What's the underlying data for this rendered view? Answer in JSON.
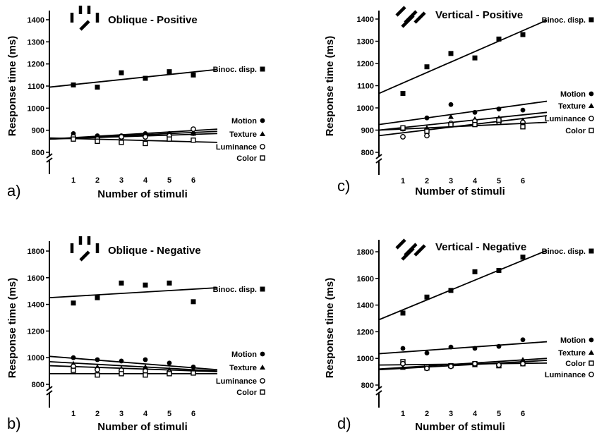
{
  "chart_data": [
    {
      "type": "scatter",
      "panel": "a)",
      "title": "Oblique - Positive",
      "xlabel": "Number of stimuli",
      "ylabel": "Response time (ms)",
      "x": [
        1,
        2,
        3,
        4,
        5,
        6
      ],
      "xticks": [
        "1",
        "2",
        "3",
        "4",
        "5",
        "6"
      ],
      "yticks": [
        "800",
        "900",
        "1000",
        "1100",
        "1200",
        "1300",
        "1400"
      ],
      "ylim": [
        800,
        1400
      ],
      "series": [
        {
          "name": "Binoc. disp.",
          "marker": "filled-square",
          "values": [
            1105,
            1095,
            1160,
            1135,
            1165,
            1150
          ],
          "fit": [
            1095,
            1175
          ]
        },
        {
          "name": "Motion",
          "marker": "filled-circle",
          "values": [
            885,
            875,
            875,
            885,
            885,
            885
          ],
          "fit": [
            860,
            905
          ]
        },
        {
          "name": "Texture",
          "marker": "filled-triangle",
          "values": [
            875,
            865,
            870,
            880,
            880,
            885
          ],
          "fit": [
            860,
            895
          ]
        },
        {
          "name": "Luminance",
          "marker": "open-circle",
          "values": [
            870,
            860,
            870,
            870,
            875,
            905
          ],
          "fit": [
            860,
            885
          ]
        },
        {
          "name": "Color",
          "marker": "open-square",
          "values": [
            860,
            850,
            845,
            840,
            860,
            855
          ],
          "fit": [
            865,
            845
          ]
        }
      ]
    },
    {
      "type": "scatter",
      "panel": "b)",
      "title": "Oblique - Negative",
      "xlabel": "Number of stimuli",
      "ylabel": "Response time (ms)",
      "x": [
        1,
        2,
        3,
        4,
        5,
        6
      ],
      "xticks": [
        "1",
        "2",
        "3",
        "4",
        "5",
        "6"
      ],
      "yticks": [
        "800",
        "1000",
        "1200",
        "1400",
        "1600",
        "1800"
      ],
      "ylim": [
        800,
        1800
      ],
      "series": [
        {
          "name": "Binoc. disp.",
          "marker": "filled-square",
          "values": [
            1410,
            1450,
            1560,
            1545,
            1560,
            1420
          ],
          "fit": [
            1450,
            1525
          ]
        },
        {
          "name": "Motion",
          "marker": "filled-circle",
          "values": [
            1000,
            985,
            975,
            985,
            960,
            930
          ],
          "fit": [
            1010,
            910
          ]
        },
        {
          "name": "Texture",
          "marker": "filled-triangle",
          "values": [
            955,
            930,
            920,
            930,
            910,
            910
          ],
          "fit": [
            970,
            900
          ]
        },
        {
          "name": "Luminance",
          "marker": "open-circle",
          "values": [
            935,
            910,
            905,
            900,
            890,
            890
          ],
          "fit": [
            940,
            895
          ]
        },
        {
          "name": "Color",
          "marker": "open-square",
          "values": [
            905,
            870,
            880,
            870,
            880,
            885
          ],
          "fit": [
            880,
            880
          ]
        }
      ]
    },
    {
      "type": "scatter",
      "panel": "c)",
      "title": "Vertical - Positive",
      "xlabel": "Number of stimuli",
      "ylabel": "Response time (ms)",
      "x": [
        1,
        2,
        3,
        4,
        5,
        6
      ],
      "xticks": [
        "1",
        "2",
        "3",
        "4",
        "5",
        "6"
      ],
      "yticks": [
        "800",
        "900",
        "1000",
        "1100",
        "1200",
        "1300",
        "1400"
      ],
      "ylim": [
        800,
        1400
      ],
      "series": [
        {
          "name": "Binoc. disp.",
          "marker": "filled-square",
          "values": [
            1065,
            1185,
            1245,
            1225,
            1310,
            1330
          ],
          "fit": [
            1065,
            1395
          ]
        },
        {
          "name": "Motion",
          "marker": "filled-circle",
          "values": [
            905,
            955,
            1015,
            980,
            995,
            990
          ],
          "fit": [
            925,
            1030
          ]
        },
        {
          "name": "Texture",
          "marker": "filled-triangle",
          "values": [
            905,
            910,
            960,
            950,
            955,
            945
          ],
          "fit": [
            900,
            980
          ]
        },
        {
          "name": "Luminance",
          "marker": "open-circle",
          "values": [
            870,
            875,
            930,
            940,
            935,
            935
          ],
          "fit": [
            875,
            965
          ]
        },
        {
          "name": "Color",
          "marker": "open-square",
          "values": [
            910,
            895,
            925,
            925,
            945,
            915
          ],
          "fit": [
            900,
            935
          ]
        }
      ]
    },
    {
      "type": "scatter",
      "panel": "d)",
      "title": "Vertical - Negative",
      "xlabel": "Number of stimuli",
      "ylabel": "Response time (ms)",
      "x": [
        1,
        2,
        3,
        4,
        5,
        6
      ],
      "xticks": [
        "1",
        "2",
        "3",
        "4",
        "5",
        "6"
      ],
      "yticks": [
        "800",
        "1000",
        "1200",
        "1400",
        "1600",
        "1800"
      ],
      "ylim": [
        800,
        1800
      ],
      "series": [
        {
          "name": "Binoc. disp.",
          "marker": "filled-square",
          "values": [
            1340,
            1460,
            1510,
            1650,
            1660,
            1760
          ],
          "fit": [
            1290,
            1810
          ]
        },
        {
          "name": "Motion",
          "marker": "filled-circle",
          "values": [
            1075,
            1040,
            1085,
            1075,
            1090,
            1140
          ],
          "fit": [
            1035,
            1125
          ]
        },
        {
          "name": "Texture",
          "marker": "filled-triangle",
          "values": [
            930,
            925,
            945,
            950,
            960,
            990
          ],
          "fit": [
            920,
            1000
          ]
        },
        {
          "name": "Color",
          "marker": "open-square",
          "values": [
            975,
            935,
            945,
            960,
            945,
            960
          ],
          "fit": [
            950,
            965
          ]
        },
        {
          "name": "Luminance",
          "marker": "open-circle",
          "values": [
            960,
            925,
            940,
            960,
            950,
            960
          ],
          "fit": [
            915,
            985
          ]
        }
      ]
    }
  ]
}
